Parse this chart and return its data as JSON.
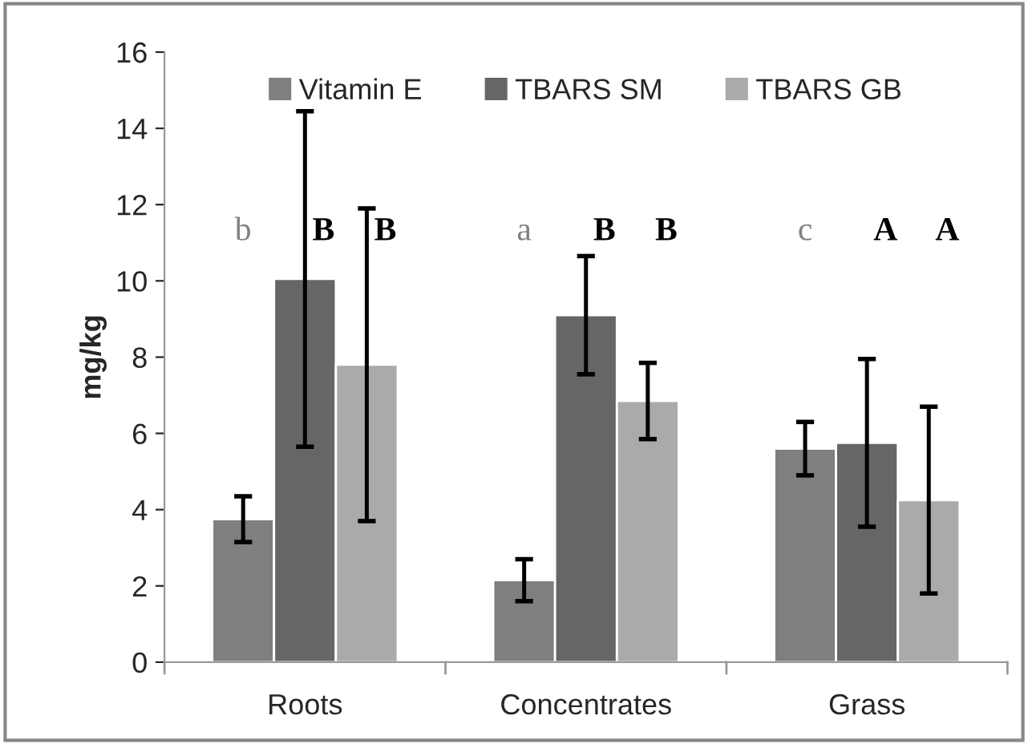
{
  "chart_data": {
    "type": "bar",
    "ylabel": "mg/kg",
    "categories": [
      "Roots",
      "Concentrates",
      "Grass"
    ],
    "series": [
      {
        "name": "Vitamin E",
        "color": "#7f7f7f",
        "values": [
          3.75,
          2.15,
          5.6
        ],
        "errors": [
          0.6,
          0.55,
          0.7
        ]
      },
      {
        "name": "TBARS SM",
        "color": "#666666",
        "values": [
          10.05,
          9.1,
          5.75
        ],
        "errors": [
          4.4,
          1.55,
          2.2
        ]
      },
      {
        "name": "TBARS GB",
        "color": "#aaaaaa",
        "values": [
          7.8,
          6.85,
          4.25
        ],
        "errors": [
          4.1,
          1.0,
          2.45
        ]
      }
    ],
    "ylim": [
      0,
      16
    ],
    "yticks": [
      0,
      2,
      4,
      6,
      8,
      10,
      12,
      14,
      16
    ],
    "grid": false,
    "legend": "top",
    "annotations": [
      "b",
      "B",
      "B",
      "a",
      "B",
      "B",
      "c",
      "A",
      "A"
    ]
  }
}
